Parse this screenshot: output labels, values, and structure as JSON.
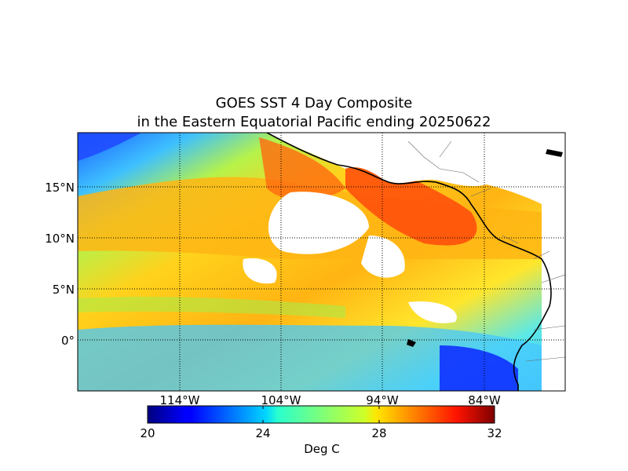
{
  "title": {
    "line1": "GOES SST 4 Day Composite",
    "line2": "in the Eastern Equatorial Pacific ending 20250622"
  },
  "map": {
    "lon_range": [
      -124,
      -76
    ],
    "lat_range": [
      -5,
      20
    ],
    "lon_ticks": [
      {
        "value": -114,
        "label": "114°W"
      },
      {
        "value": -104,
        "label": "104°W"
      },
      {
        "value": -94,
        "label": "94°W"
      },
      {
        "value": -84,
        "label": "84°W"
      }
    ],
    "lat_ticks": [
      {
        "value": 15,
        "label": "15°N"
      },
      {
        "value": 10,
        "label": "10°N"
      },
      {
        "value": 5,
        "label": "5°N"
      },
      {
        "value": 0,
        "label": "0°"
      }
    ],
    "grid": "dotted",
    "missing_data_color": "#ffffff",
    "land_color": "#ffffff"
  },
  "colorbar": {
    "min": 20,
    "max": 32,
    "ticks": [
      {
        "value": 20,
        "label": "20"
      },
      {
        "value": 24,
        "label": "24"
      },
      {
        "value": 28,
        "label": "28"
      },
      {
        "value": 32,
        "label": "32"
      }
    ],
    "label": "Deg C",
    "colormap": "jet"
  }
}
